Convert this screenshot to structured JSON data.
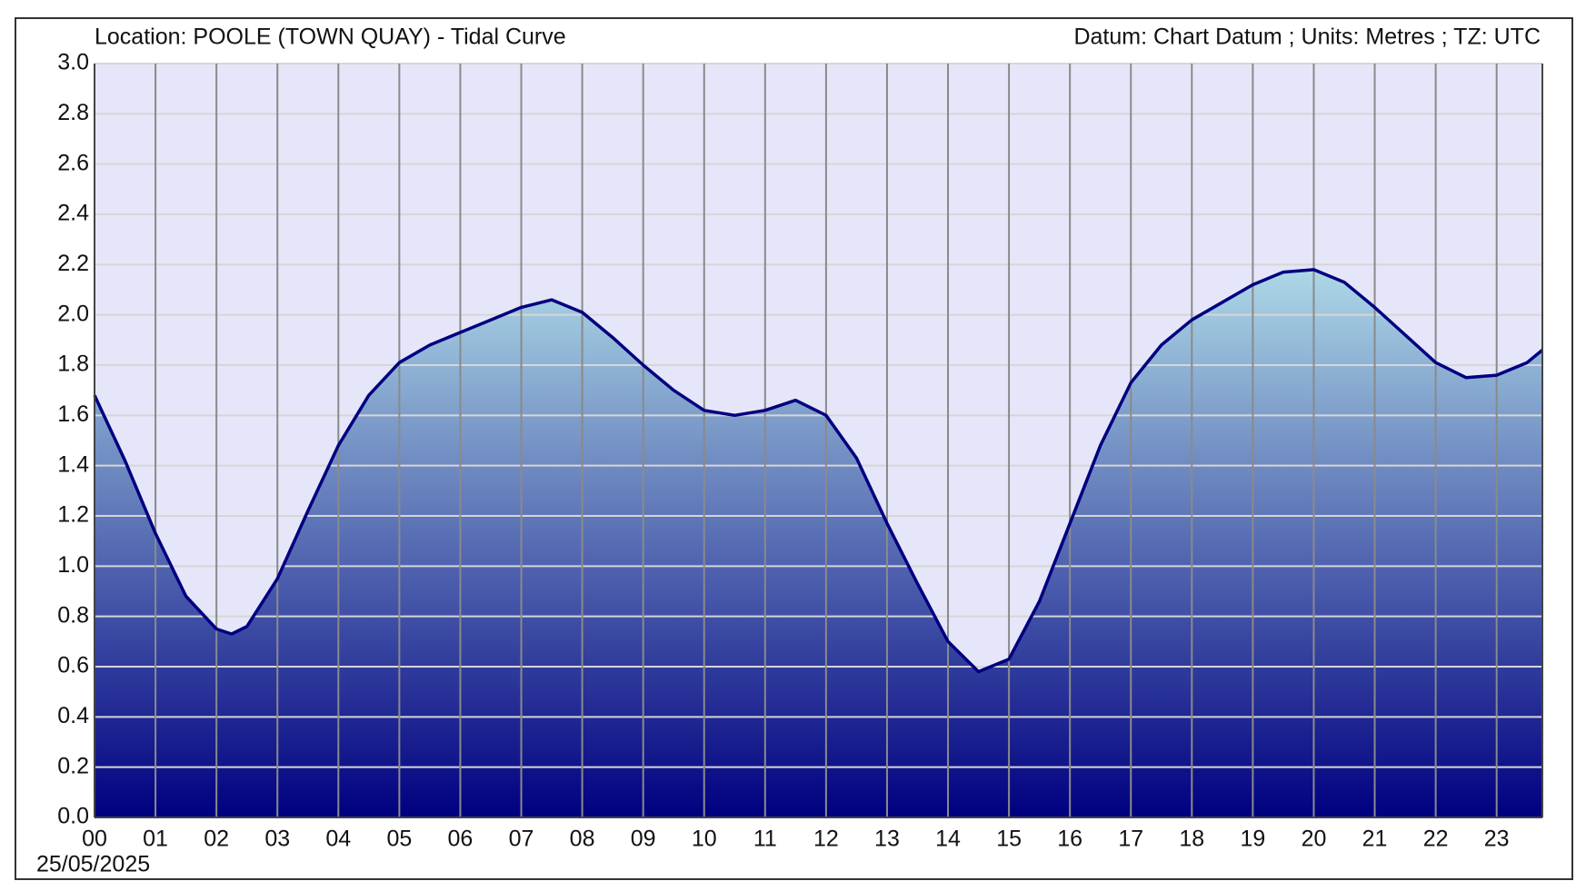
{
  "chart_data": {
    "type": "area",
    "title": "Location: POOLE (TOWN QUAY) - Tidal Curve",
    "subtitle": "Datum: Chart Datum ; Units: Metres ; TZ: UTC",
    "date_label": "25/05/2025",
    "x": [
      0,
      0.5,
      1,
      1.5,
      2,
      2.25,
      2.5,
      3,
      3.5,
      4,
      4.5,
      5,
      5.5,
      6,
      6.5,
      7,
      7.5,
      8,
      8.5,
      9,
      9.5,
      10,
      10.5,
      11,
      11.5,
      12,
      12.5,
      13,
      13.5,
      14,
      14.5,
      15,
      15.5,
      16,
      16.5,
      17,
      17.5,
      18,
      18.5,
      19,
      19.5,
      20,
      20.5,
      21,
      21.5,
      22,
      22.5,
      23,
      23.5,
      23.75
    ],
    "values": [
      1.68,
      1.42,
      1.13,
      0.88,
      0.75,
      0.73,
      0.76,
      0.95,
      1.22,
      1.48,
      1.68,
      1.81,
      1.88,
      1.93,
      1.98,
      2.03,
      2.06,
      2.01,
      1.91,
      1.8,
      1.7,
      1.62,
      1.6,
      1.62,
      1.66,
      1.6,
      1.43,
      1.17,
      0.93,
      0.7,
      0.58,
      0.63,
      0.86,
      1.17,
      1.48,
      1.73,
      1.88,
      1.98,
      2.05,
      2.12,
      2.17,
      2.18,
      2.13,
      2.03,
      1.92,
      1.81,
      1.75,
      1.76,
      1.81,
      1.86
    ],
    "color": "#000080",
    "fill_top": "#add8e6",
    "fill_bottom": "#000080",
    "background": "#e6e6fa",
    "grid": true,
    "xlim": [
      0,
      23.75
    ],
    "xticks": [
      {
        "value": 0,
        "label": "00"
      },
      {
        "value": 1,
        "label": "01"
      },
      {
        "value": 2,
        "label": "02"
      },
      {
        "value": 3,
        "label": "03"
      },
      {
        "value": 4,
        "label": "04"
      },
      {
        "value": 5,
        "label": "05"
      },
      {
        "value": 6,
        "label": "06"
      },
      {
        "value": 7,
        "label": "07"
      },
      {
        "value": 8,
        "label": "08"
      },
      {
        "value": 9,
        "label": "09"
      },
      10,
      11,
      12,
      13,
      14,
      15,
      16,
      17,
      18,
      19,
      20,
      21,
      22,
      23
    ],
    "ylim": [
      0,
      3
    ],
    "yticks": [
      {
        "value": 0,
        "label": "0.0"
      },
      0.2,
      0.4,
      0.6,
      0.8,
      {
        "value": 1,
        "label": "1.0"
      },
      1.2,
      1.4,
      1.6,
      1.8,
      {
        "value": 2,
        "label": "2.0"
      },
      2.2,
      2.4,
      2.6,
      2.8,
      {
        "value": 3,
        "label": "3.0"
      }
    ]
  }
}
